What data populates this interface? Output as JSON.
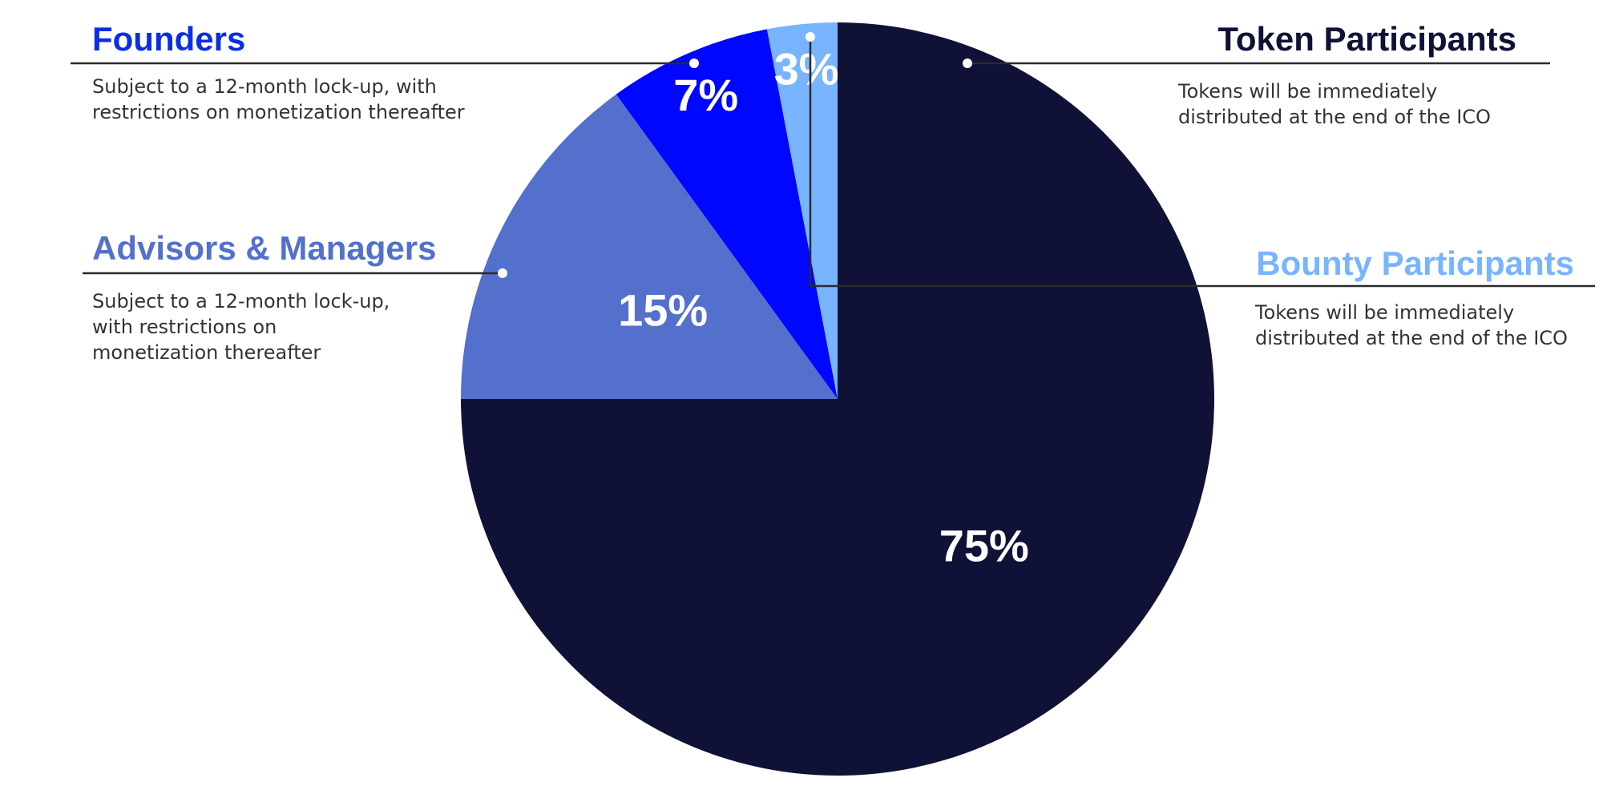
{
  "chart_data": {
    "type": "pie",
    "slices": [
      {
        "name": "Token Participants",
        "value": 75,
        "label": "75%",
        "color": "#0f1136",
        "description": "Tokens will be immediately distributed at the end of the ICO"
      },
      {
        "name": "Advisors & Managers",
        "value": 15,
        "label": "15%",
        "color": "#5270cc",
        "description": "Subject to a 12-month lock-up, with restrictions on monetization thereafter"
      },
      {
        "name": "Founders",
        "value": 7,
        "label": "7%",
        "color": "#0006ff",
        "description": "Subject to a 12-month lock-up, with restrictions on monetization thereafter"
      },
      {
        "name": "Bounty Participants",
        "value": 3,
        "label": "3%",
        "color": "#78b4ff",
        "description": "Tokens will be immediately distributed at the end of the ICO"
      }
    ]
  },
  "colors": {
    "token": "#0f1136",
    "advisors": "#5270cc",
    "founders": "#0006ff",
    "bounty": "#78b4ff",
    "leader_line": "#2b2b2b",
    "description_text": "#333333"
  }
}
